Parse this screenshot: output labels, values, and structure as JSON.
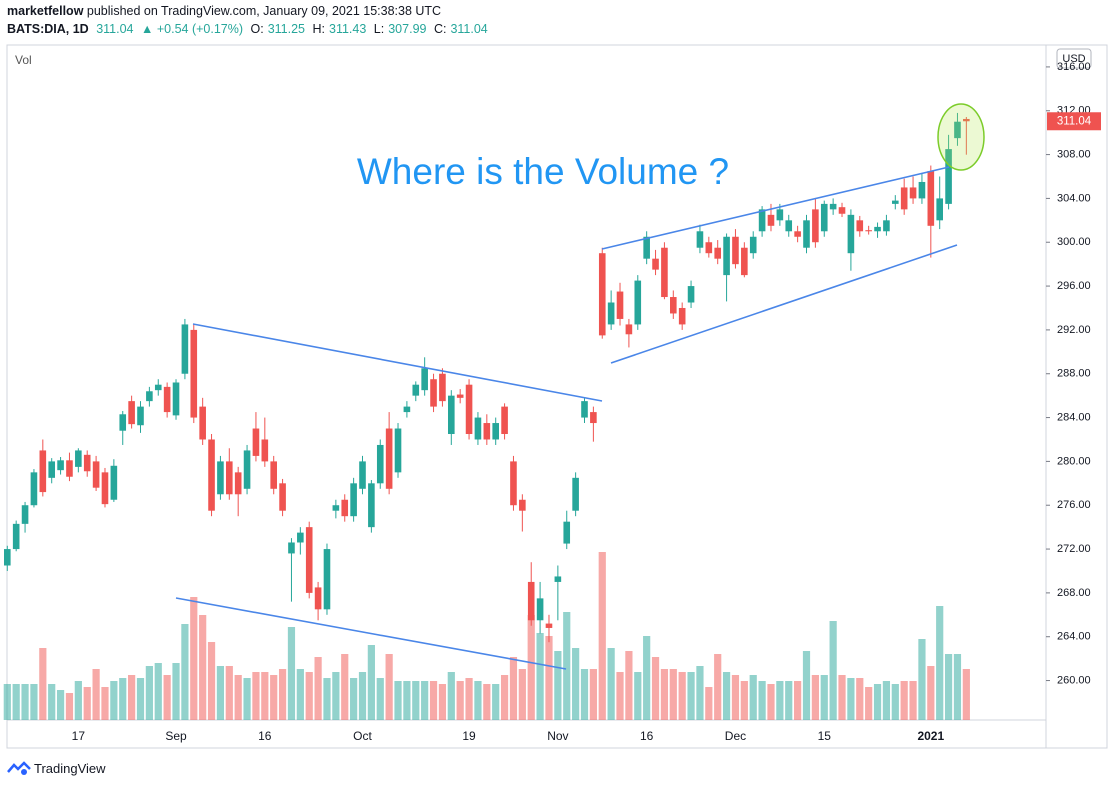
{
  "header": {
    "author": "marketfellow",
    "published": "published on TradingView.com, January 09, 2021 15:38:38 UTC",
    "symbol": "BATS:DIA, 1D",
    "change": "▲ +0.54 (+0.17%)",
    "o_label": "O:",
    "h_label": "H:",
    "l_label": "L:",
    "c_label": "C:"
  },
  "footer": {
    "brand": "TradingView"
  },
  "chart_data": {
    "type": "candlestick",
    "annotation": "Where is the Volume ?",
    "volume_label": "Vol",
    "currency": "USD",
    "up_color": "#26a69a",
    "down_color": "#ef5350",
    "ylim": [
      256.4,
      318.0
    ],
    "yticks": [
      {
        "value": 260,
        "label": "260.00"
      },
      {
        "value": 264,
        "label": "264.00"
      },
      {
        "value": 268,
        "label": "268.00"
      },
      {
        "value": 272,
        "label": "272.00"
      },
      {
        "value": 276,
        "label": "276.00"
      },
      {
        "value": 280,
        "label": "280.00"
      },
      {
        "value": 284,
        "label": "284.00"
      },
      {
        "value": 288,
        "label": "288.00"
      },
      {
        "value": 292,
        "label": "292.00"
      },
      {
        "value": 296,
        "label": "296.00"
      },
      {
        "value": 300,
        "label": "300.00"
      },
      {
        "value": 304,
        "label": "304.00"
      },
      {
        "value": 308,
        "label": "308.00"
      },
      {
        "value": 312,
        "label": "312.00"
      },
      {
        "value": 316,
        "label": "316.00"
      }
    ],
    "categories": [
      null,
      null,
      null,
      null,
      null,
      null,
      null,
      null,
      "17",
      null,
      null,
      null,
      null,
      null,
      null,
      null,
      null,
      null,
      null,
      "Sep",
      null,
      null,
      null,
      null,
      null,
      null,
      null,
      null,
      null,
      "16",
      null,
      null,
      null,
      null,
      null,
      null,
      null,
      null,
      null,
      null,
      "Oct",
      null,
      null,
      null,
      null,
      null,
      null,
      null,
      null,
      null,
      null,
      null,
      "19",
      null,
      null,
      null,
      null,
      null,
      null,
      null,
      null,
      null,
      "Nov",
      null,
      null,
      null,
      null,
      null,
      null,
      null,
      null,
      null,
      "16",
      null,
      null,
      null,
      null,
      null,
      null,
      null,
      null,
      null,
      "Dec",
      null,
      null,
      null,
      null,
      null,
      null,
      null,
      null,
      null,
      "15",
      null,
      null,
      null,
      null,
      null,
      null,
      null,
      null,
      null,
      null,
      null,
      "2021",
      null,
      null,
      null,
      null
    ],
    "open": [
      270.5,
      272,
      274.3,
      276,
      281,
      278.5,
      279.2,
      280.1,
      279.5,
      280.6,
      280,
      279,
      276.5,
      282.8,
      285.5,
      283.3,
      285.5,
      286.5,
      286.8,
      284.2,
      288,
      292,
      285,
      282,
      277,
      280,
      279,
      277.5,
      283,
      282,
      280,
      278,
      271.6,
      272.6,
      274,
      268.5,
      266.5,
      275.5,
      276.5,
      275,
      277.5,
      274,
      278,
      283,
      279,
      284.5,
      286,
      286.5,
      287.5,
      288,
      282.5,
      286.1,
      287,
      282,
      283.5,
      282,
      285,
      280,
      276.5,
      269,
      265.5,
      265.2,
      269,
      272.5,
      275.5,
      284,
      284.5,
      299,
      292.5,
      295.5,
      292.5,
      292.5,
      298.5,
      298.5,
      299.5,
      295,
      294,
      294.5,
      299.5,
      300,
      299.5,
      297,
      300.5,
      299.5,
      299,
      301,
      302.5,
      302,
      301,
      301,
      299.5,
      303,
      301,
      303,
      303.2,
      299,
      302,
      301.1,
      301,
      301,
      303.5,
      305,
      305,
      304,
      306.5,
      302,
      303.5,
      309.5,
      311.25
    ],
    "high": [
      272.3,
      274.6,
      276.3,
      279.3,
      282,
      280.3,
      280.4,
      280.8,
      281.2,
      281,
      280.5,
      279.4,
      280.2,
      284.6,
      286,
      285.5,
      286.8,
      287.5,
      287.2,
      287.5,
      293,
      292.5,
      285.8,
      282.5,
      280.5,
      281.2,
      279.5,
      281.5,
      284.5,
      284,
      280.5,
      278.4,
      273,
      274,
      274.5,
      269,
      272.5,
      276.5,
      277,
      278.5,
      280.5,
      278.3,
      282,
      284.5,
      283.5,
      285.5,
      287.3,
      289.5,
      288,
      288.5,
      286.5,
      286.6,
      287.5,
      284.5,
      284.3,
      284,
      285.3,
      280.5,
      277,
      270.8,
      269,
      266,
      270.5,
      275.5,
      279,
      285.8,
      285,
      299.5,
      295.6,
      296.3,
      293,
      297,
      301,
      299.3,
      300,
      295.6,
      294.5,
      296.5,
      301.6,
      300.5,
      300.2,
      300.8,
      301.2,
      300,
      301,
      303.3,
      303.5,
      303.5,
      302.5,
      301.5,
      302.5,
      304,
      303.8,
      304,
      303.6,
      303,
      302.4,
      301.5,
      301.8,
      302.5,
      304.3,
      305.8,
      306,
      306.3,
      307,
      306,
      309.8,
      311.8,
      311.43
    ],
    "low": [
      270,
      271.8,
      273.5,
      275.8,
      276.8,
      278,
      278.8,
      278.2,
      279,
      278.6,
      277.3,
      275.8,
      276.3,
      281.5,
      283,
      282.6,
      285,
      286,
      284,
      283.8,
      287.5,
      283.5,
      281.5,
      275,
      276.5,
      276.5,
      275,
      277,
      280,
      279.5,
      277,
      275,
      267.2,
      271.5,
      267.5,
      265.5,
      266,
      274.8,
      274.5,
      274.5,
      277,
      273.5,
      277.5,
      277,
      278.5,
      284,
      285.5,
      286,
      284.5,
      285,
      281.5,
      285.3,
      282,
      281.5,
      281.5,
      281.5,
      282,
      275.5,
      273.6,
      265,
      264.3,
      263.5,
      265.5,
      272,
      275,
      283.5,
      281.8,
      291.2,
      292,
      292.4,
      290.4,
      292,
      298,
      297,
      294.8,
      293,
      292,
      294,
      299,
      298.6,
      298,
      294.6,
      297.6,
      296.8,
      298.5,
      300.5,
      301,
      301.5,
      300.5,
      300,
      299,
      299.5,
      300.5,
      302.5,
      302.3,
      297.4,
      300.5,
      300.7,
      300.4,
      300.6,
      303,
      302.5,
      303.5,
      303.5,
      298.6,
      301.2,
      303,
      308.8,
      307.99
    ],
    "close": [
      272,
      274.3,
      276,
      279,
      277.2,
      280,
      280.1,
      278.6,
      281,
      279.1,
      277.6,
      276.1,
      279.6,
      284.3,
      283.4,
      285,
      286.4,
      287,
      284.5,
      287.2,
      292.5,
      284,
      282,
      275.5,
      280,
      277,
      277,
      281,
      280.5,
      280,
      277.5,
      275.5,
      272.6,
      273.5,
      268,
      266.5,
      272,
      276,
      275,
      278,
      280,
      278,
      281.5,
      277.5,
      283,
      285,
      287,
      288.5,
      285,
      285.5,
      286,
      285.8,
      282.5,
      284,
      282,
      283.5,
      282.5,
      276,
      275.5,
      265.5,
      267.5,
      264.8,
      269.5,
      274.5,
      278.5,
      285.5,
      283.5,
      291.5,
      294.5,
      293,
      291.6,
      296.5,
      300.5,
      297.5,
      295,
      293.5,
      292.5,
      296,
      301,
      299,
      298.5,
      300.5,
      298,
      297,
      300.5,
      303,
      301.5,
      303,
      302,
      300.5,
      302,
      300,
      303.5,
      303.5,
      302.6,
      302.5,
      301,
      301,
      301.4,
      302,
      303.8,
      303,
      304,
      305.5,
      301.5,
      304,
      308.5,
      311,
      311.04
    ],
    "volume": [
      1.2,
      1.2,
      1.2,
      1.2,
      2.4,
      1.2,
      1.0,
      0.9,
      1.3,
      1.1,
      1.7,
      1.1,
      1.3,
      1.4,
      1.5,
      1.4,
      1.8,
      1.9,
      1.5,
      1.9,
      3.2,
      4.1,
      3.5,
      2.6,
      1.8,
      1.8,
      1.5,
      1.4,
      1.6,
      1.6,
      1.5,
      1.7,
      3.1,
      1.7,
      1.6,
      2.1,
      1.4,
      1.6,
      2.2,
      1.4,
      1.6,
      2.5,
      1.4,
      2.2,
      1.3,
      1.3,
      1.3,
      1.3,
      1.3,
      1.2,
      1.6,
      1.3,
      1.4,
      1.3,
      1.2,
      1.2,
      1.5,
      2.1,
      1.7,
      3.5,
      2.9,
      2.8,
      2.3,
      3.6,
      2.4,
      1.7,
      1.7,
      5.6,
      2.4,
      1.6,
      2.3,
      1.6,
      2.8,
      2.1,
      1.7,
      1.7,
      1.6,
      1.6,
      1.8,
      1.1,
      2.2,
      1.6,
      1.5,
      1.3,
      1.5,
      1.3,
      1.2,
      1.3,
      1.3,
      1.3,
      2.3,
      1.5,
      1.5,
      3.3,
      1.5,
      1.4,
      1.4,
      1.1,
      1.2,
      1.3,
      1.2,
      1.3,
      1.3,
      2.7,
      1.8,
      3.8,
      2.2,
      2.2,
      1.7
    ]
  }
}
